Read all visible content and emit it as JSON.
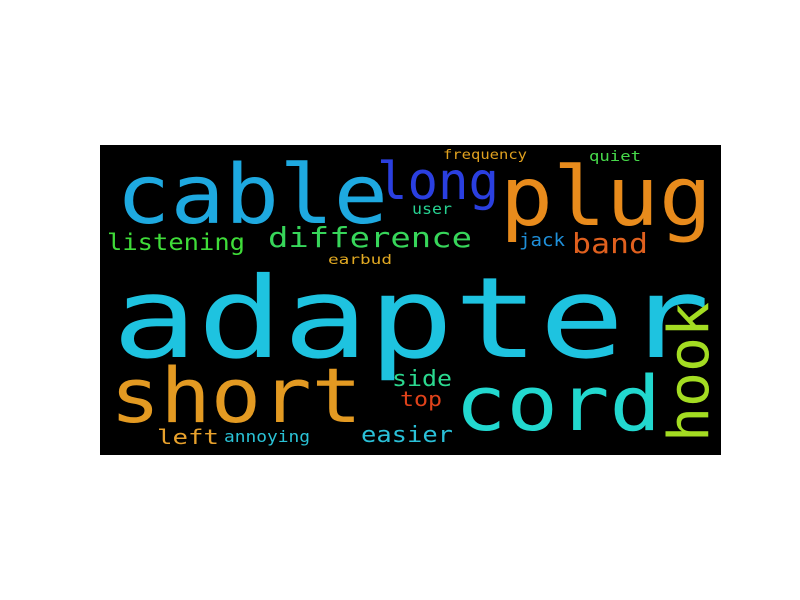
{
  "words": [
    {
      "text": "adapter",
      "color": "#1ec3e0"
    },
    {
      "text": "cable",
      "color": "#1ea9e0"
    },
    {
      "text": "plug",
      "color": "#e88b1c"
    },
    {
      "text": "long",
      "color": "#2a3fe0"
    },
    {
      "text": "short",
      "color": "#e39a22"
    },
    {
      "text": "cord",
      "color": "#22d8cf"
    },
    {
      "text": "hook",
      "color": "#a3dc22"
    },
    {
      "text": "difference",
      "color": "#37d65a"
    },
    {
      "text": "listening",
      "color": "#3fdc39"
    },
    {
      "text": "band",
      "color": "#e0601e"
    },
    {
      "text": "jack",
      "color": "#1f8fd9"
    },
    {
      "text": "user",
      "color": "#27d191"
    },
    {
      "text": "earbud",
      "color": "#e0a822"
    },
    {
      "text": "frequency",
      "color": "#e0a11f"
    },
    {
      "text": "quiet",
      "color": "#46d84a"
    },
    {
      "text": "side",
      "color": "#2bd88f"
    },
    {
      "text": "top",
      "color": "#e0421a"
    },
    {
      "text": "left",
      "color": "#e8a12c"
    },
    {
      "text": "annoying",
      "color": "#2ac2d6"
    },
    {
      "text": "easier",
      "color": "#2ac0d8"
    }
  ]
}
